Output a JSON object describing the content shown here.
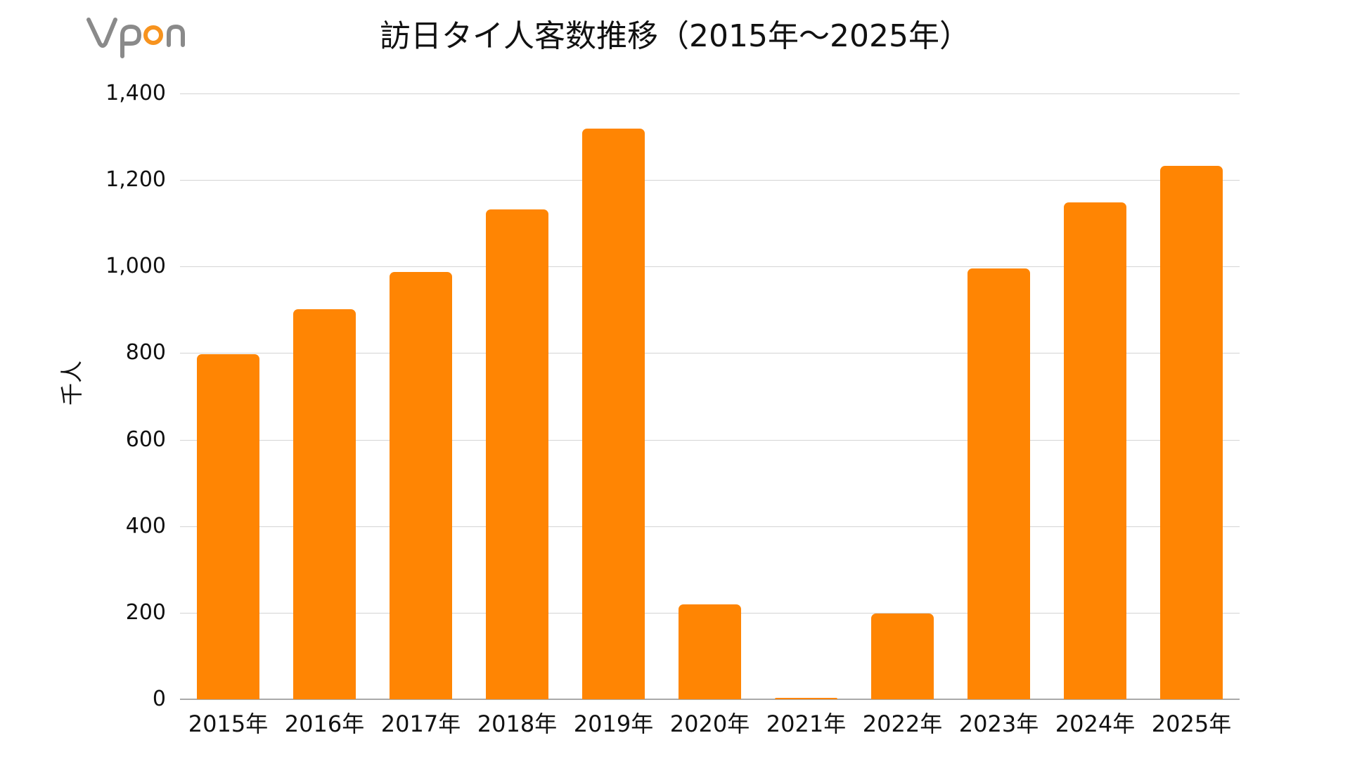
{
  "logo": {
    "text_v": "V",
    "text_p": "p",
    "text_o": "o",
    "text_n": "n",
    "gray": "#8a8a8a",
    "orange": "#F7931E"
  },
  "title": "訪日タイ人客数推移（2015年～2025年）",
  "chart_data": {
    "type": "bar",
    "title": "訪日タイ人客数推移（2015年～2025年）",
    "xlabel": "",
    "ylabel": "千人",
    "categories": [
      "2015年",
      "2016年",
      "2017年",
      "2018年",
      "2019年",
      "2020年",
      "2021年",
      "2022年",
      "2023年",
      "2024年",
      "2025年"
    ],
    "values": [
      797,
      902,
      987,
      1132,
      1319,
      220,
      3,
      198,
      996,
      1149,
      1233
    ],
    "ylim": [
      0,
      1400
    ],
    "yticks": [
      0,
      200,
      400,
      600,
      800,
      1000,
      1200,
      1400
    ],
    "ytick_labels": [
      "0",
      "200",
      "400",
      "600",
      "800",
      "1,000",
      "1,200",
      "1,400"
    ],
    "grid": true,
    "legend": null,
    "bar_color": "#FF8503"
  }
}
